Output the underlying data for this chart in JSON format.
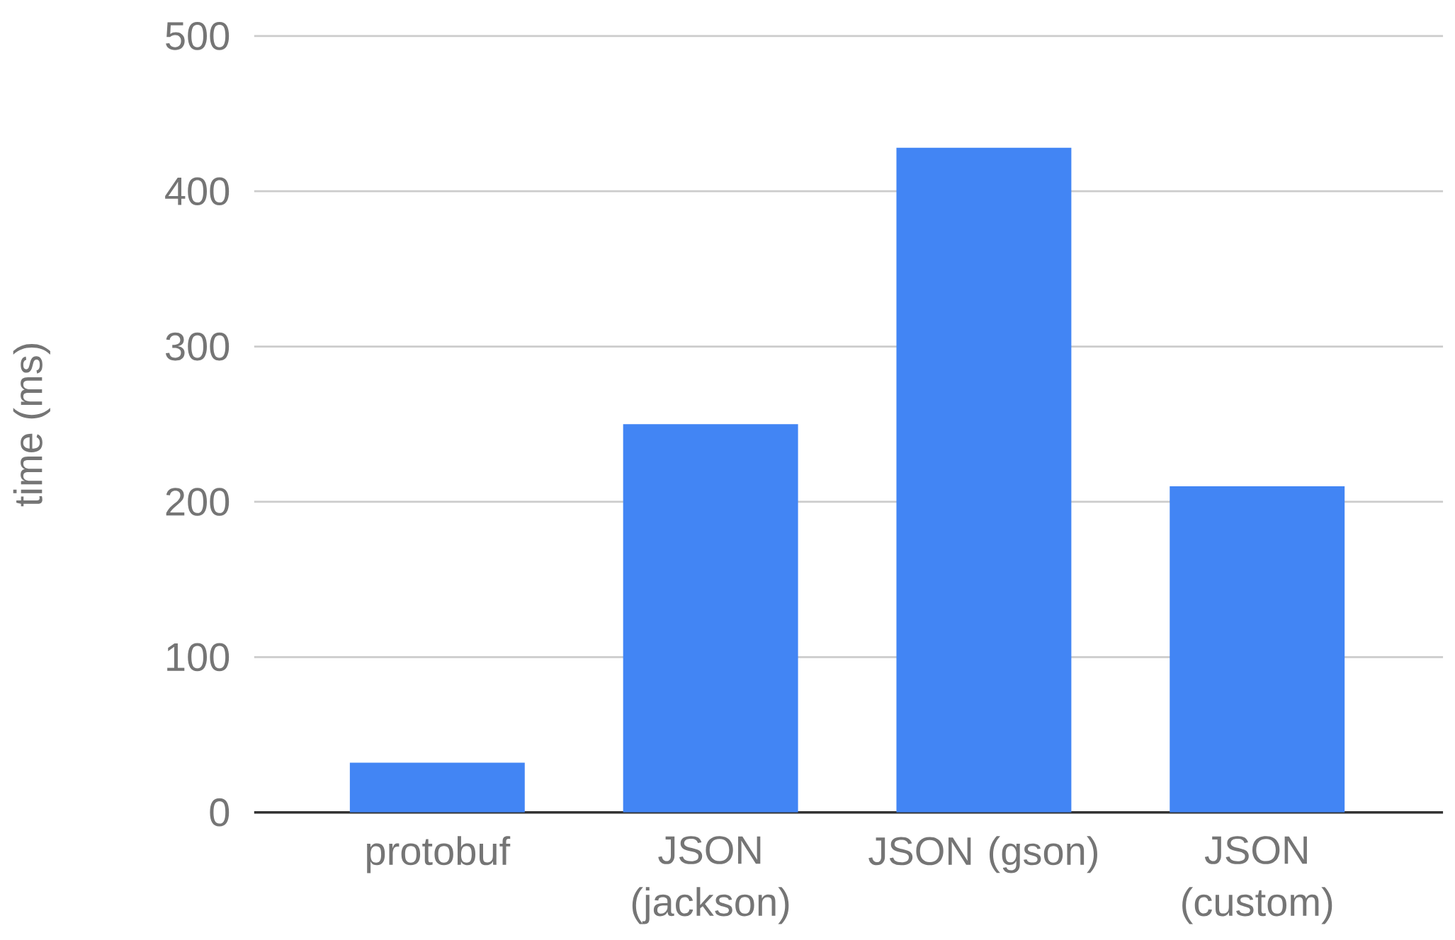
{
  "chart_data": {
    "type": "bar",
    "ylabel": "time (ms)",
    "categories": [
      "protobuf",
      "JSON (jackson)",
      "JSON (gson)",
      "JSON (custom)"
    ],
    "values": [
      32,
      250,
      428,
      210
    ],
    "color": "#4285f4",
    "ylim": [
      0,
      500
    ],
    "yticks": [
      0,
      100,
      200,
      300,
      400,
      500
    ],
    "grid": "y"
  }
}
